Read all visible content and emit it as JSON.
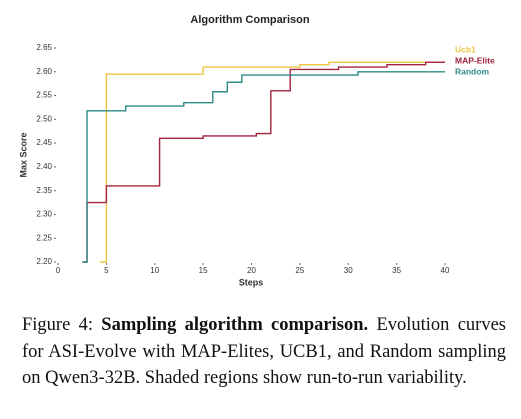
{
  "chart_data": {
    "type": "step",
    "title": "Algorithm Comparison",
    "x_label": "Steps",
    "y_label": "Max Score",
    "xlim": [
      0,
      40
    ],
    "xticks": [
      0,
      5,
      10,
      15,
      20,
      25,
      30,
      35,
      40
    ],
    "ylim": [
      2.2,
      2.65
    ],
    "yticks": [
      {
        "value": 2.2,
        "label": "2.20"
      },
      {
        "value": 2.25,
        "label": "2.25"
      },
      {
        "value": 2.3,
        "label": "2.30"
      },
      {
        "value": 2.35,
        "label": "2.35"
      },
      {
        "value": 2.4,
        "label": "2.40"
      },
      {
        "value": 2.45,
        "label": "2.45"
      },
      {
        "value": 2.5,
        "label": "2.50"
      },
      {
        "value": 2.55,
        "label": "2.55"
      },
      {
        "value": 2.6,
        "label": "2.60"
      },
      {
        "value": 2.65,
        "label": "2.65"
      }
    ],
    "legend": "upper right",
    "series": [
      {
        "name": "Ucb1",
        "color": "#f2c443",
        "x": [
          4.3,
          5,
          15,
          25,
          28,
          40
        ],
        "values": [
          2.2,
          2.595,
          2.61,
          2.615,
          2.62,
          2.62
        ]
      },
      {
        "name": "MAP-Elite",
        "color": "#a3223e",
        "x": [
          2.6,
          3,
          5,
          10.5,
          15,
          20.5,
          22,
          24,
          29,
          34,
          38,
          40
        ],
        "values": [
          2.2,
          2.325,
          2.36,
          2.46,
          2.465,
          2.47,
          2.56,
          2.605,
          2.61,
          2.615,
          2.62,
          2.62
        ]
      },
      {
        "name": "Random",
        "color": "#2e8b88",
        "x": [
          2.5,
          3,
          7,
          13,
          16,
          17.5,
          19,
          31,
          40
        ],
        "values": [
          2.2,
          2.518,
          2.528,
          2.535,
          2.558,
          2.578,
          2.593,
          2.6,
          2.6
        ]
      }
    ]
  },
  "caption": {
    "label": "Figure 4:",
    "bold": "Sampling algorithm comparison.",
    "text": "Evolution curves for ASI-Evolve with MAP-Elites, UCB1, and Random sampling on Qwen3-32B. Shaded regions show run-to-run variability."
  }
}
